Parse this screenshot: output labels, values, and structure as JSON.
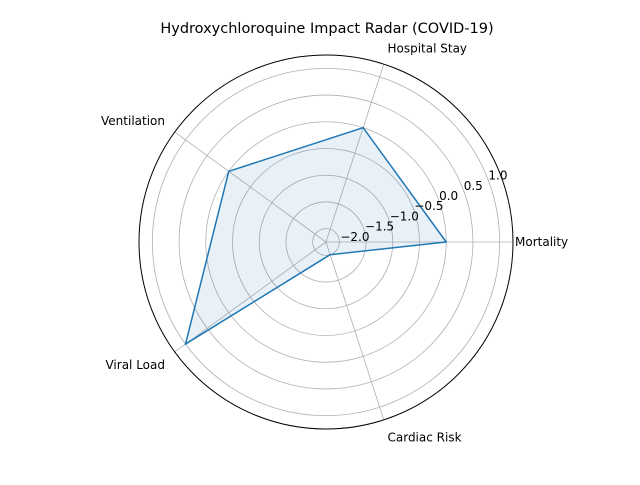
{
  "chart_data": {
    "type": "radar",
    "title": "Hydroxychloroquine Impact Radar (COVID-19)",
    "categories": [
      "Mortality",
      "Hospital Stay",
      "Ventilation",
      "Viral Load",
      "Cardiac Risk"
    ],
    "series": [
      {
        "values": [
          0.0,
          0.0,
          0.0,
          1.0,
          -2.0
        ]
      }
    ],
    "radial_ticks": [
      {
        "value": -2.0,
        "label": "−2.0"
      },
      {
        "value": -1.5,
        "label": "−1.5"
      },
      {
        "value": -1.0,
        "label": "−1.0"
      },
      {
        "value": -0.5,
        "label": "−0.5"
      },
      {
        "value": 0.0,
        "label": "0.0"
      },
      {
        "value": 0.5,
        "label": "0.5"
      },
      {
        "value": 1.0,
        "label": "1.0"
      }
    ],
    "rlim": [
      -2.25,
      1.25
    ],
    "grid": true,
    "colors": {
      "line": "#1f77b4",
      "fill": "#1f77b4",
      "grid": "#b0b0b0",
      "spine": "#000000"
    }
  }
}
